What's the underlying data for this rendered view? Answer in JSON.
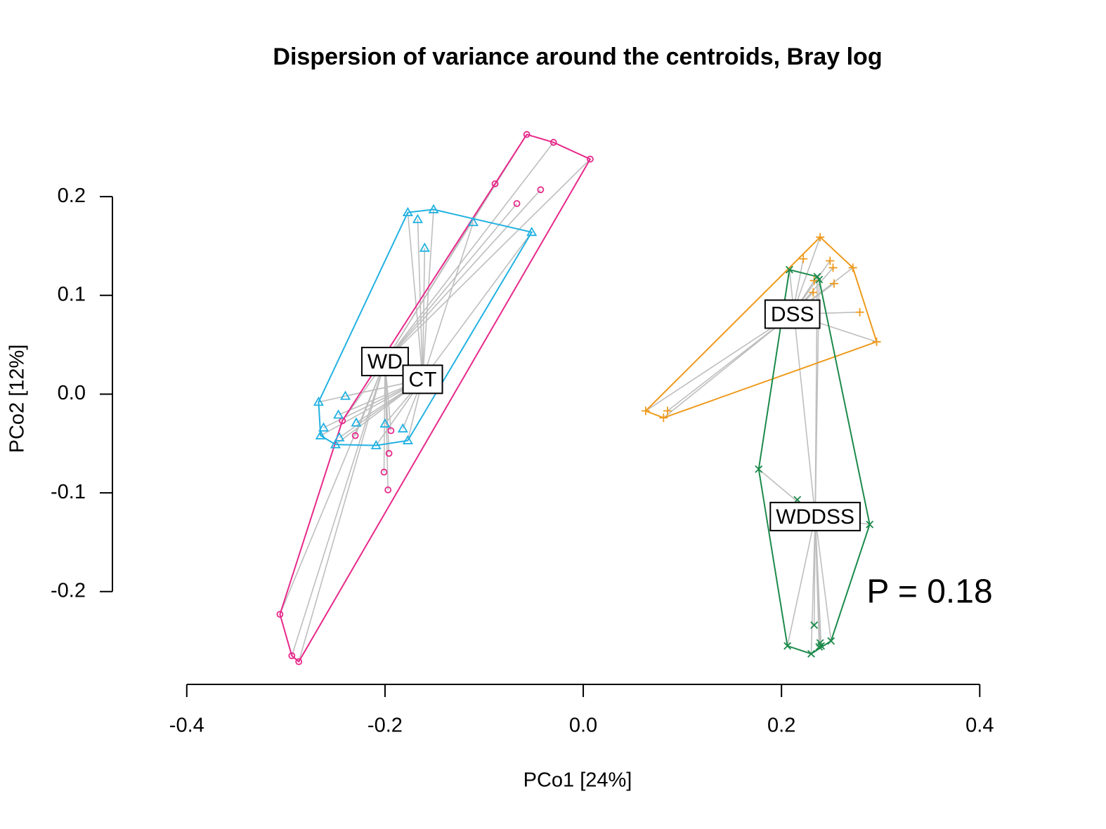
{
  "chart_data": {
    "type": "scatter",
    "title": "Dispersion of variance around the centroids, Bray log",
    "xlabel": "PCo1 [24%]",
    "ylabel": "PCo2 [12%]",
    "annotation": {
      "text": "P = 0.18",
      "color": "#ff0000"
    },
    "xlim": [
      -0.475,
      0.465
    ],
    "ylim": [
      -0.294,
      0.284
    ],
    "xticks": [
      -0.4,
      -0.2,
      {
        "value": 0,
        "label": "0.0"
      },
      0.2,
      0.4
    ],
    "yticks": [
      -0.2,
      -0.1,
      {
        "value": 0,
        "label": "0.0"
      },
      0.1,
      0.2
    ],
    "segment_color": "#bebebe",
    "series": [
      {
        "name": "WD",
        "color": "#e7298a",
        "marker": "circle",
        "centroid_x": -0.2,
        "centroid_y": 0.033,
        "x": [
          -0.057,
          -0.03,
          0.007,
          -0.089,
          -0.067,
          -0.043,
          -0.243,
          -0.23,
          -0.194,
          -0.196,
          -0.201,
          -0.197,
          -0.306,
          -0.294,
          -0.287
        ],
        "y": [
          0.263,
          0.255,
          0.238,
          0.213,
          0.193,
          0.207,
          -0.027,
          -0.042,
          -0.037,
          -0.06,
          -0.079,
          -0.097,
          -0.223,
          -0.265,
          -0.271
        ]
      },
      {
        "name": "CT",
        "color": "#22b2e2",
        "marker": "triangle",
        "centroid_x": -0.162,
        "centroid_y": 0.015,
        "x": [
          -0.177,
          -0.151,
          -0.167,
          -0.111,
          -0.052,
          -0.16,
          -0.267,
          -0.24,
          -0.262,
          -0.265,
          -0.247,
          -0.246,
          -0.229,
          -0.25,
          -0.209,
          -0.2,
          -0.182,
          -0.177
        ],
        "y": [
          0.184,
          0.187,
          0.177,
          0.174,
          0.164,
          0.148,
          -0.008,
          -0.002,
          -0.034,
          -0.042,
          -0.021,
          -0.044,
          -0.029,
          -0.051,
          -0.052,
          -0.03,
          -0.035,
          -0.047
        ]
      },
      {
        "name": "DSS",
        "color": "#ee9a1c",
        "marker": "plus",
        "centroid_x": 0.211,
        "centroid_y": 0.081,
        "x": [
          0.239,
          0.222,
          0.249,
          0.252,
          0.272,
          0.253,
          0.232,
          0.233,
          0.279,
          0.296,
          0.063,
          0.081,
          0.085
        ],
        "y": [
          0.159,
          0.137,
          0.135,
          0.128,
          0.128,
          0.112,
          0.103,
          0.115,
          0.083,
          0.053,
          -0.017,
          -0.024,
          -0.017
        ]
      },
      {
        "name": "WDDSS",
        "color": "#1b8a4a",
        "marker": "cross",
        "centroid_x": 0.234,
        "centroid_y": -0.124,
        "x": [
          0.208,
          0.236,
          0.238,
          0.177,
          0.216,
          0.289,
          0.233,
          0.206,
          0.23,
          0.239,
          0.24,
          0.25,
          0.238
        ],
        "y": [
          0.126,
          0.119,
          0.116,
          -0.076,
          -0.107,
          -0.132,
          -0.234,
          -0.255,
          -0.263,
          -0.252,
          -0.255,
          -0.25,
          -0.256
        ]
      }
    ]
  }
}
